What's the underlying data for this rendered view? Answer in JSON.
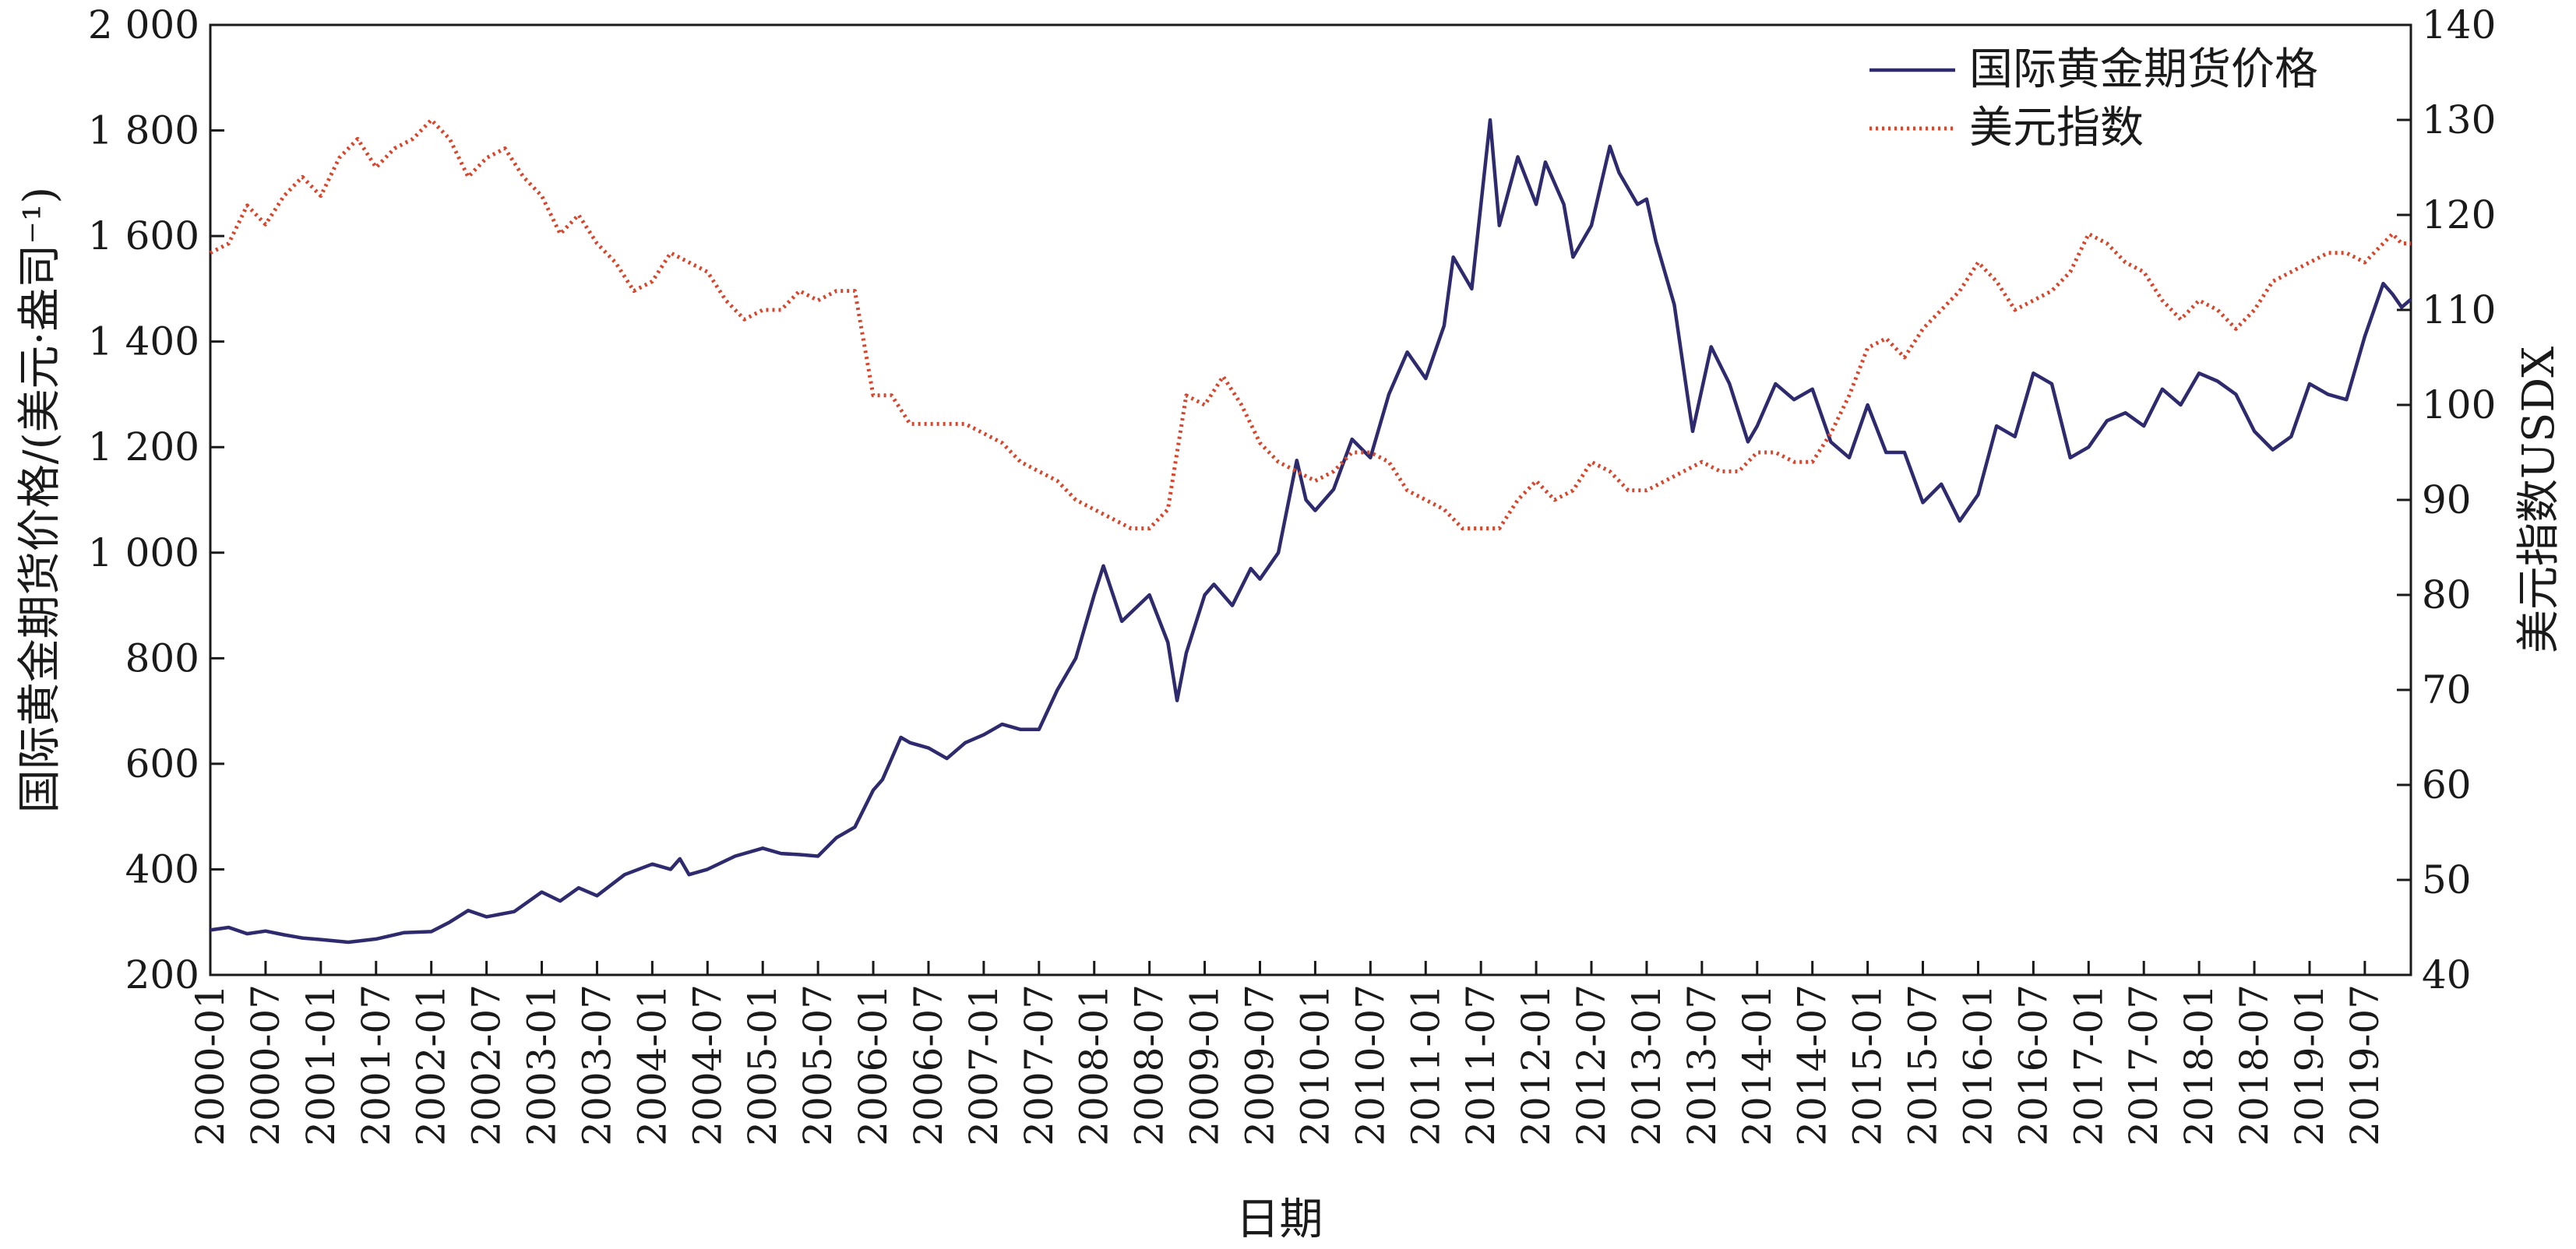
{
  "chart_data": {
    "type": "line",
    "xlabel": "日期",
    "ylabel_left": "国际黄金期货价格/(美元·盎司⁻¹)",
    "ylabel_right": "美元指数USDX",
    "ylim_left": [
      200,
      2000
    ],
    "ylim_right": [
      40,
      140
    ],
    "yticks_left": [
      "200",
      "400",
      "600",
      "800",
      "1 000",
      "1 200",
      "1 400",
      "1 600",
      "1 800",
      "2 000"
    ],
    "yticks_right": [
      "40",
      "50",
      "60",
      "70",
      "80",
      "90",
      "100",
      "110",
      "120",
      "130",
      "140"
    ],
    "xticks": [
      "2000-01",
      "2000-07",
      "2001-01",
      "2001-07",
      "2002-01",
      "2002-07",
      "2003-01",
      "2003-07",
      "2004-01",
      "2004-07",
      "2005-01",
      "2005-07",
      "2006-01",
      "2006-07",
      "2007-01",
      "2007-07",
      "2008-01",
      "2008-07",
      "2009-01",
      "2009-07",
      "2010-01",
      "2010-07",
      "2011-01",
      "2011-07",
      "2012-01",
      "2012-07",
      "2013-01",
      "2013-07",
      "2014-01",
      "2014-07",
      "2015-01",
      "2015-07",
      "2016-01",
      "2016-07",
      "2017-01",
      "2017-07",
      "2018-01",
      "2018-07",
      "2019-01",
      "2019-07"
    ],
    "legend_position": "top-right",
    "series": [
      {
        "name": "国际黄金期货价格",
        "axis": "left",
        "color": "#2e2a6e",
        "style": "solid",
        "points": [
          [
            "2000-01",
            285
          ],
          [
            "2000-03",
            290
          ],
          [
            "2000-05",
            278
          ],
          [
            "2000-07",
            283
          ],
          [
            "2000-09",
            276
          ],
          [
            "2000-11",
            270
          ],
          [
            "2001-01",
            267
          ],
          [
            "2001-04",
            262
          ],
          [
            "2001-07",
            268
          ],
          [
            "2001-10",
            280
          ],
          [
            "2002-01",
            282
          ],
          [
            "2002-03",
            300
          ],
          [
            "2002-05",
            322
          ],
          [
            "2002-07",
            310
          ],
          [
            "2002-10",
            320
          ],
          [
            "2003-01",
            357
          ],
          [
            "2003-03",
            340
          ],
          [
            "2003-05",
            365
          ],
          [
            "2003-07",
            350
          ],
          [
            "2003-10",
            390
          ],
          [
            "2004-01",
            410
          ],
          [
            "2004-03",
            400
          ],
          [
            "2004-04",
            420
          ],
          [
            "2004-05",
            390
          ],
          [
            "2004-07",
            400
          ],
          [
            "2004-10",
            425
          ],
          [
            "2005-01",
            440
          ],
          [
            "2005-03",
            430
          ],
          [
            "2005-05",
            428
          ],
          [
            "2005-07",
            425
          ],
          [
            "2005-09",
            460
          ],
          [
            "2005-11",
            480
          ],
          [
            "2006-01",
            550
          ],
          [
            "2006-02",
            570
          ],
          [
            "2006-04",
            650
          ],
          [
            "2006-05",
            640
          ],
          [
            "2006-07",
            630
          ],
          [
            "2006-09",
            610
          ],
          [
            "2006-11",
            640
          ],
          [
            "2007-01",
            655
          ],
          [
            "2007-03",
            675
          ],
          [
            "2007-05",
            665
          ],
          [
            "2007-07",
            665
          ],
          [
            "2007-09",
            740
          ],
          [
            "2007-11",
            800
          ],
          [
            "2008-01",
            920
          ],
          [
            "2008-02",
            975
          ],
          [
            "2008-04",
            870
          ],
          [
            "2008-07",
            920
          ],
          [
            "2008-09",
            830
          ],
          [
            "2008-10",
            720
          ],
          [
            "2008-11",
            810
          ],
          [
            "2009-01",
            920
          ],
          [
            "2009-02",
            940
          ],
          [
            "2009-04",
            900
          ],
          [
            "2009-06",
            970
          ],
          [
            "2009-07",
            950
          ],
          [
            "2009-09",
            1000
          ],
          [
            "2009-11",
            1175
          ],
          [
            "2009-12",
            1100
          ],
          [
            "2010-01",
            1080
          ],
          [
            "2010-03",
            1120
          ],
          [
            "2010-05",
            1215
          ],
          [
            "2010-07",
            1180
          ],
          [
            "2010-09",
            1300
          ],
          [
            "2010-11",
            1380
          ],
          [
            "2011-01",
            1330
          ],
          [
            "2011-03",
            1430
          ],
          [
            "2011-04",
            1560
          ],
          [
            "2011-06",
            1500
          ],
          [
            "2011-08",
            1820
          ],
          [
            "2011-09",
            1620
          ],
          [
            "2011-11",
            1750
          ],
          [
            "2012-01",
            1660
          ],
          [
            "2012-02",
            1740
          ],
          [
            "2012-04",
            1660
          ],
          [
            "2012-05",
            1560
          ],
          [
            "2012-07",
            1620
          ],
          [
            "2012-09",
            1770
          ],
          [
            "2012-10",
            1720
          ],
          [
            "2012-12",
            1660
          ],
          [
            "2013-01",
            1670
          ],
          [
            "2013-02",
            1590
          ],
          [
            "2013-04",
            1470
          ],
          [
            "2013-06",
            1230
          ],
          [
            "2013-08",
            1390
          ],
          [
            "2013-10",
            1320
          ],
          [
            "2013-12",
            1210
          ],
          [
            "2014-01",
            1240
          ],
          [
            "2014-03",
            1320
          ],
          [
            "2014-05",
            1290
          ],
          [
            "2014-07",
            1310
          ],
          [
            "2014-09",
            1210
          ],
          [
            "2014-11",
            1180
          ],
          [
            "2015-01",
            1280
          ],
          [
            "2015-03",
            1190
          ],
          [
            "2015-05",
            1190
          ],
          [
            "2015-07",
            1095
          ],
          [
            "2015-09",
            1130
          ],
          [
            "2015-11",
            1060
          ],
          [
            "2016-01",
            1110
          ],
          [
            "2016-03",
            1240
          ],
          [
            "2016-05",
            1220
          ],
          [
            "2016-07",
            1340
          ],
          [
            "2016-09",
            1320
          ],
          [
            "2016-11",
            1180
          ],
          [
            "2017-01",
            1200
          ],
          [
            "2017-03",
            1250
          ],
          [
            "2017-05",
            1265
          ],
          [
            "2017-07",
            1240
          ],
          [
            "2017-09",
            1310
          ],
          [
            "2017-11",
            1280
          ],
          [
            "2018-01",
            1340
          ],
          [
            "2018-03",
            1325
          ],
          [
            "2018-05",
            1300
          ],
          [
            "2018-07",
            1230
          ],
          [
            "2018-09",
            1195
          ],
          [
            "2018-11",
            1220
          ],
          [
            "2019-01",
            1320
          ],
          [
            "2019-03",
            1300
          ],
          [
            "2019-05",
            1290
          ],
          [
            "2019-07",
            1410
          ],
          [
            "2019-09",
            1510
          ],
          [
            "2019-10",
            1490
          ],
          [
            "2019-11",
            1465
          ],
          [
            "2019-12",
            1480
          ]
        ]
      },
      {
        "name": "美元指数",
        "axis": "right",
        "color": "#d9452b",
        "style": "dotted",
        "points": [
          [
            "2000-01",
            116
          ],
          [
            "2000-03",
            117
          ],
          [
            "2000-05",
            121
          ],
          [
            "2000-07",
            119
          ],
          [
            "2000-09",
            122
          ],
          [
            "2000-11",
            124
          ],
          [
            "2001-01",
            122
          ],
          [
            "2001-03",
            126
          ],
          [
            "2001-05",
            128
          ],
          [
            "2001-07",
            125
          ],
          [
            "2001-09",
            127
          ],
          [
            "2001-11",
            128
          ],
          [
            "2002-01",
            130
          ],
          [
            "2002-03",
            128
          ],
          [
            "2002-05",
            124
          ],
          [
            "2002-07",
            126
          ],
          [
            "2002-09",
            127
          ],
          [
            "2002-11",
            124
          ],
          [
            "2003-01",
            122
          ],
          [
            "2003-03",
            118
          ],
          [
            "2003-05",
            120
          ],
          [
            "2003-07",
            117
          ],
          [
            "2003-09",
            115
          ],
          [
            "2003-11",
            112
          ],
          [
            "2004-01",
            113
          ],
          [
            "2004-03",
            116
          ],
          [
            "2004-05",
            115
          ],
          [
            "2004-07",
            114
          ],
          [
            "2004-09",
            111
          ],
          [
            "2004-11",
            109
          ],
          [
            "2005-01",
            110
          ],
          [
            "2005-03",
            110
          ],
          [
            "2005-05",
            112
          ],
          [
            "2005-07",
            111
          ],
          [
            "2005-09",
            112
          ],
          [
            "2005-11",
            112
          ],
          [
            "2006-01",
            101
          ],
          [
            "2006-03",
            101
          ],
          [
            "2006-05",
            98
          ],
          [
            "2006-07",
            98
          ],
          [
            "2006-09",
            98
          ],
          [
            "2006-11",
            98
          ],
          [
            "2007-01",
            97
          ],
          [
            "2007-03",
            96
          ],
          [
            "2007-05",
            94
          ],
          [
            "2007-07",
            93
          ],
          [
            "2007-09",
            92
          ],
          [
            "2007-11",
            90
          ],
          [
            "2008-01",
            89
          ],
          [
            "2008-03",
            88
          ],
          [
            "2008-05",
            87
          ],
          [
            "2008-07",
            87
          ],
          [
            "2008-09",
            89
          ],
          [
            "2008-11",
            101
          ],
          [
            "2009-01",
            100
          ],
          [
            "2009-03",
            103
          ],
          [
            "2009-05",
            100
          ],
          [
            "2009-07",
            96
          ],
          [
            "2009-09",
            94
          ],
          [
            "2009-11",
            93
          ],
          [
            "2010-01",
            92
          ],
          [
            "2010-03",
            93
          ],
          [
            "2010-05",
            95
          ],
          [
            "2010-07",
            95
          ],
          [
            "2010-09",
            94
          ],
          [
            "2010-11",
            91
          ],
          [
            "2011-01",
            90
          ],
          [
            "2011-03",
            89
          ],
          [
            "2011-05",
            87
          ],
          [
            "2011-07",
            87
          ],
          [
            "2011-09",
            87
          ],
          [
            "2011-11",
            90
          ],
          [
            "2012-01",
            92
          ],
          [
            "2012-03",
            90
          ],
          [
            "2012-05",
            91
          ],
          [
            "2012-07",
            94
          ],
          [
            "2012-09",
            93
          ],
          [
            "2012-11",
            91
          ],
          [
            "2013-01",
            91
          ],
          [
            "2013-03",
            92
          ],
          [
            "2013-05",
            93
          ],
          [
            "2013-07",
            94
          ],
          [
            "2013-09",
            93
          ],
          [
            "2013-11",
            93
          ],
          [
            "2014-01",
            95
          ],
          [
            "2014-03",
            95
          ],
          [
            "2014-05",
            94
          ],
          [
            "2014-07",
            94
          ],
          [
            "2014-09",
            97
          ],
          [
            "2014-11",
            101
          ],
          [
            "2015-01",
            106
          ],
          [
            "2015-03",
            107
          ],
          [
            "2015-05",
            105
          ],
          [
            "2015-07",
            108
          ],
          [
            "2015-09",
            110
          ],
          [
            "2015-11",
            112
          ],
          [
            "2016-01",
            115
          ],
          [
            "2016-03",
            113
          ],
          [
            "2016-05",
            110
          ],
          [
            "2016-07",
            111
          ],
          [
            "2016-09",
            112
          ],
          [
            "2016-11",
            114
          ],
          [
            "2017-01",
            118
          ],
          [
            "2017-03",
            117
          ],
          [
            "2017-05",
            115
          ],
          [
            "2017-07",
            114
          ],
          [
            "2017-09",
            111
          ],
          [
            "2017-11",
            109
          ],
          [
            "2018-01",
            111
          ],
          [
            "2018-03",
            110
          ],
          [
            "2018-05",
            108
          ],
          [
            "2018-07",
            110
          ],
          [
            "2018-09",
            113
          ],
          [
            "2018-11",
            114
          ],
          [
            "2019-01",
            115
          ],
          [
            "2019-03",
            116
          ],
          [
            "2019-05",
            116
          ],
          [
            "2019-07",
            115
          ],
          [
            "2019-09",
            117
          ],
          [
            "2019-10",
            118
          ],
          [
            "2019-11",
            117
          ],
          [
            "2019-12",
            117
          ]
        ]
      }
    ]
  }
}
